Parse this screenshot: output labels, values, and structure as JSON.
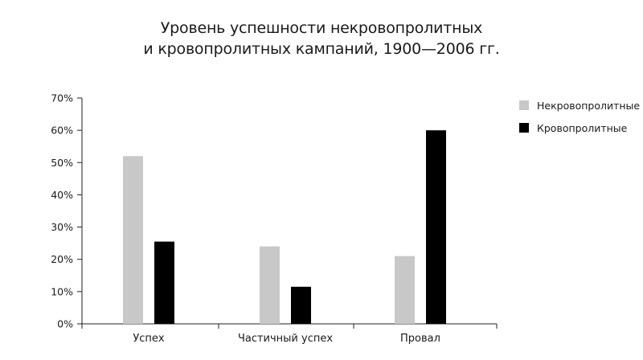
{
  "chart_data": {
    "type": "bar",
    "title_lines": [
      "Уровень успешности некровопролитных",
      "и кровопролитных кампаний, 1900—2006 гг."
    ],
    "xlabel": "",
    "ylabel": "",
    "categories": [
      "Успех",
      "Частичный успех",
      "Провал"
    ],
    "series": [
      {
        "name": "Некровопролитные",
        "color": "#c8c8c8",
        "values": [
          52,
          24,
          21
        ]
      },
      {
        "name": "Кровопролитные",
        "color": "#000000",
        "values": [
          25.5,
          11.5,
          60
        ]
      }
    ],
    "ylim": [
      0,
      70
    ],
    "yticks": [
      0,
      10,
      20,
      30,
      40,
      50,
      60,
      70
    ],
    "ytick_labels": [
      "0%",
      "10%",
      "20%",
      "30%",
      "40%",
      "50%",
      "60%",
      "70%"
    ],
    "grid": false,
    "legend_position": "top-right"
  }
}
